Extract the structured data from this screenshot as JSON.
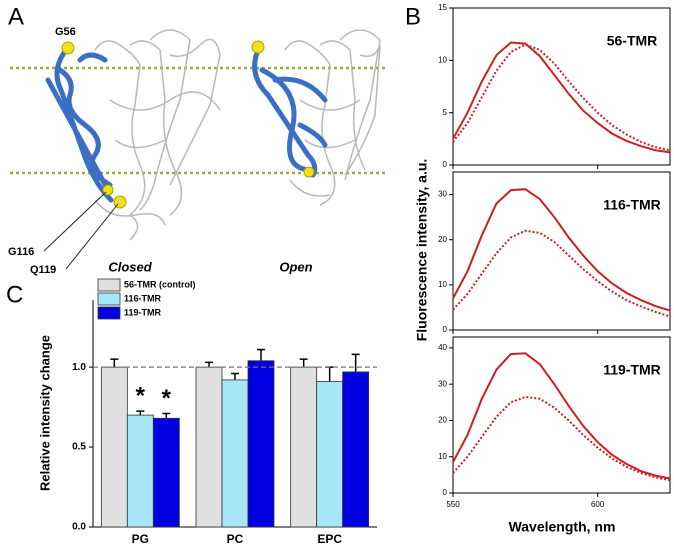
{
  "panel_a": {
    "label": "A",
    "residues": [
      "G56",
      "G116",
      "Q119"
    ],
    "states": [
      "Closed",
      "Open"
    ]
  },
  "chart_data": [
    {
      "type": "line",
      "panel_label": "B",
      "annotation": "56-TMR",
      "xlim": [
        550,
        625
      ],
      "ylim": [
        0,
        15
      ],
      "yticks": [
        0,
        5,
        10,
        15
      ],
      "x": [
        550,
        555,
        560,
        565,
        570,
        575,
        580,
        585,
        590,
        595,
        600,
        605,
        610,
        615,
        620,
        625
      ],
      "series": [
        {
          "color": "#cc2020",
          "dash": "solid",
          "values": [
            2.5,
            5.0,
            8.0,
            10.5,
            11.7,
            11.6,
            10.4,
            8.6,
            6.8,
            5.2,
            4.0,
            3.0,
            2.3,
            1.8,
            1.4,
            1.2
          ]
        },
        {
          "color": "#cc2020",
          "dash": "dotted",
          "values": [
            2.2,
            4.0,
            6.5,
            9.0,
            10.8,
            11.5,
            11.0,
            9.7,
            8.0,
            6.4,
            5.0,
            3.8,
            2.9,
            2.2,
            1.7,
            1.4
          ]
        }
      ]
    },
    {
      "type": "line",
      "annotation": "116-TMR",
      "ylabel": "Fluorescence intensity, a.u.",
      "xlim": [
        550,
        625
      ],
      "ylim": [
        0,
        35
      ],
      "yticks": [
        0,
        10,
        20,
        30
      ],
      "x": [
        550,
        555,
        560,
        565,
        570,
        575,
        580,
        585,
        590,
        595,
        600,
        605,
        610,
        615,
        620,
        625
      ],
      "series": [
        {
          "color": "#cc2020",
          "dash": "solid",
          "values": [
            7,
            13,
            21,
            28,
            31,
            31.2,
            29,
            25,
            20.5,
            16.5,
            13,
            10.3,
            8.2,
            6.6,
            5.3,
            4.3
          ]
        },
        {
          "color": "#cc2020",
          "dash": "dotted",
          "values": [
            4.5,
            8,
            12.5,
            17,
            20.5,
            22,
            21.5,
            19.5,
            16.5,
            13.5,
            10.8,
            8.5,
            6.6,
            5.2,
            4,
            3
          ]
        }
      ]
    },
    {
      "type": "line",
      "annotation": "119-TMR",
      "xlabel": "Wavelength, nm",
      "xlim": [
        550,
        625
      ],
      "xticks": [
        550,
        600
      ],
      "ylim": [
        0,
        43
      ],
      "yticks": [
        0,
        10,
        20,
        30,
        40
      ],
      "x": [
        550,
        555,
        560,
        565,
        570,
        575,
        580,
        585,
        590,
        595,
        600,
        605,
        610,
        615,
        620,
        625
      ],
      "series": [
        {
          "color": "#cc2020",
          "dash": "solid",
          "values": [
            8.5,
            16,
            26,
            34,
            38.3,
            38.5,
            35.5,
            30,
            24,
            18.5,
            14,
            10.5,
            8,
            6,
            4.8,
            4
          ]
        },
        {
          "color": "#cc2020",
          "dash": "dotted",
          "values": [
            5.5,
            10,
            15.5,
            21,
            25,
            26.5,
            26,
            23.5,
            20,
            16,
            12.5,
            9.5,
            7.2,
            5.5,
            4.3,
            3.5
          ]
        }
      ]
    },
    {
      "type": "bar",
      "panel_label": "C",
      "ylabel": "Relative intensity change",
      "categories": [
        "PG",
        "PC",
        "EPC"
      ],
      "ylim": [
        0,
        1.42
      ],
      "yticks": [
        {
          "value": 0,
          "label": "0.0"
        },
        {
          "value": 0.5,
          "label": "0.5"
        },
        {
          "value": 1,
          "label": "1.0"
        }
      ],
      "hline": 1,
      "series": [
        {
          "name": "56-TMR (control)",
          "color": "#e0e0e0",
          "values": [
            1,
            1,
            1
          ],
          "errors": [
            0.05,
            0.03,
            0.05
          ]
        },
        {
          "name": "116-TMR",
          "color": "#a6e6f7",
          "values": [
            0.7,
            0.92,
            0.91
          ],
          "errors": [
            0.025,
            0.04,
            0.09
          ],
          "significance": [
            "*",
            null,
            null
          ]
        },
        {
          "name": "119-TMR",
          "color": "#0000e0",
          "values": [
            0.68,
            1.04,
            0.97
          ],
          "errors": [
            0.03,
            0.07,
            0.11
          ],
          "significance": [
            "*",
            null,
            null
          ]
        }
      ]
    }
  ]
}
